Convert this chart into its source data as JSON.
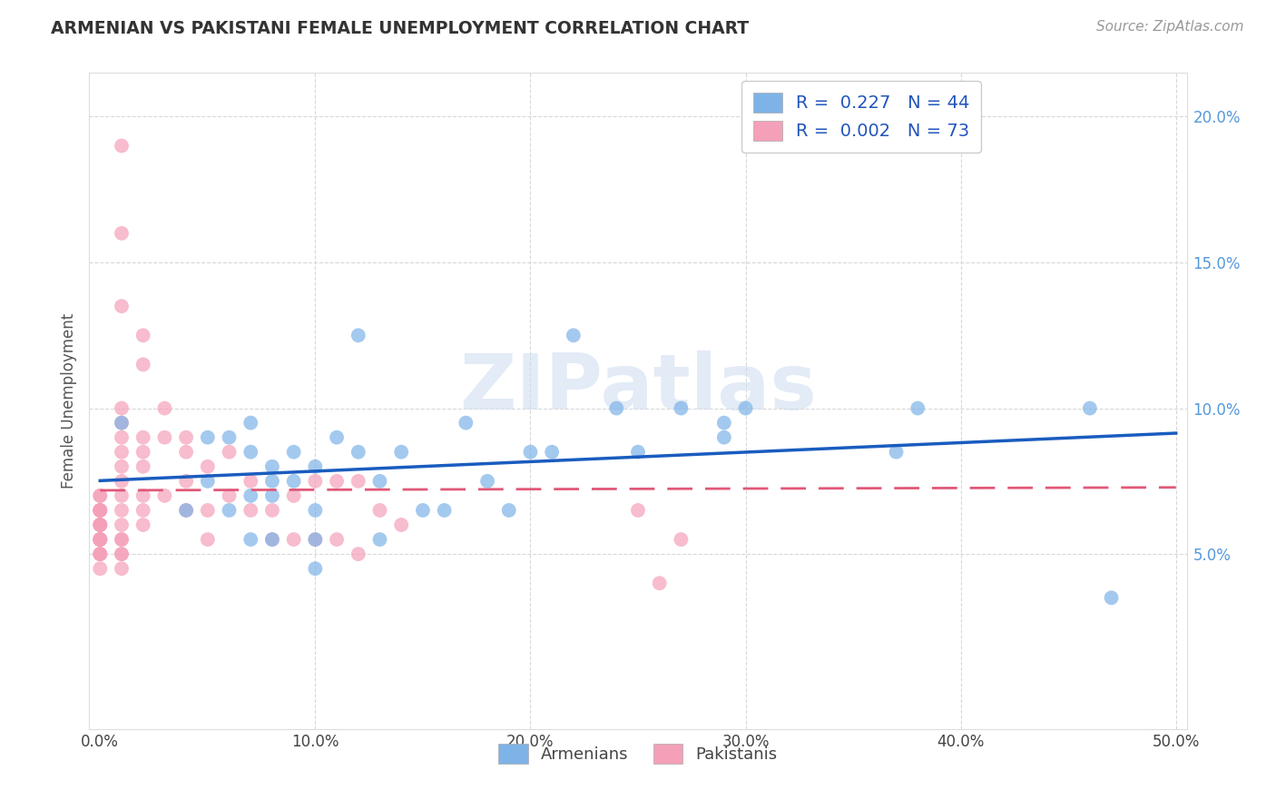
{
  "title": "ARMENIAN VS PAKISTANI FEMALE UNEMPLOYMENT CORRELATION CHART",
  "source": "Source: ZipAtlas.com",
  "xlabel": "",
  "ylabel": "Female Unemployment",
  "xlim": [
    -0.005,
    0.505
  ],
  "ylim": [
    -0.01,
    0.215
  ],
  "xticks": [
    0.0,
    0.1,
    0.2,
    0.3,
    0.4,
    0.5
  ],
  "xtick_labels": [
    "0.0%",
    "10.0%",
    "20.0%",
    "30.0%",
    "40.0%",
    "50.0%"
  ],
  "yticks": [
    0.0,
    0.05,
    0.1,
    0.15,
    0.2
  ],
  "ytick_labels": [
    "",
    "5.0%",
    "10.0%",
    "15.0%",
    "20.0%"
  ],
  "armenian_color": "#7eb3e8",
  "pakistani_color": "#f4a0b8",
  "armenian_line_color": "#1a5cbf",
  "pakistani_line_color": "#e05878",
  "legend_armenian_R": "0.227",
  "legend_armenian_N": "44",
  "legend_pakistani_R": "0.002",
  "legend_pakistani_N": "73",
  "background_color": "#ffffff",
  "grid_color": "#d8d8d8",
  "watermark": "ZIPatlas",
  "armenians_x": [
    0.01,
    0.04,
    0.05,
    0.05,
    0.06,
    0.06,
    0.07,
    0.07,
    0.07,
    0.07,
    0.08,
    0.08,
    0.08,
    0.08,
    0.09,
    0.09,
    0.1,
    0.1,
    0.1,
    0.1,
    0.11,
    0.12,
    0.12,
    0.13,
    0.13,
    0.14,
    0.15,
    0.16,
    0.17,
    0.18,
    0.19,
    0.2,
    0.21,
    0.22,
    0.24,
    0.25,
    0.27,
    0.29,
    0.29,
    0.3,
    0.37,
    0.38,
    0.46,
    0.47
  ],
  "armenians_y": [
    0.095,
    0.065,
    0.09,
    0.075,
    0.09,
    0.065,
    0.095,
    0.085,
    0.07,
    0.055,
    0.08,
    0.075,
    0.07,
    0.055,
    0.085,
    0.075,
    0.08,
    0.065,
    0.055,
    0.045,
    0.09,
    0.125,
    0.085,
    0.075,
    0.055,
    0.085,
    0.065,
    0.065,
    0.095,
    0.075,
    0.065,
    0.085,
    0.085,
    0.125,
    0.1,
    0.085,
    0.1,
    0.095,
    0.09,
    0.1,
    0.085,
    0.1,
    0.1,
    0.035
  ],
  "pakistanis_x": [
    0.0,
    0.0,
    0.0,
    0.0,
    0.0,
    0.0,
    0.0,
    0.0,
    0.0,
    0.0,
    0.0,
    0.0,
    0.0,
    0.0,
    0.0,
    0.0,
    0.0,
    0.0,
    0.0,
    0.01,
    0.01,
    0.01,
    0.01,
    0.01,
    0.01,
    0.01,
    0.01,
    0.01,
    0.01,
    0.01,
    0.01,
    0.01,
    0.01,
    0.01,
    0.01,
    0.01,
    0.02,
    0.02,
    0.02,
    0.02,
    0.02,
    0.02,
    0.02,
    0.02,
    0.03,
    0.03,
    0.03,
    0.04,
    0.04,
    0.04,
    0.04,
    0.05,
    0.05,
    0.05,
    0.06,
    0.06,
    0.07,
    0.07,
    0.08,
    0.08,
    0.09,
    0.09,
    0.1,
    0.1,
    0.11,
    0.11,
    0.12,
    0.12,
    0.13,
    0.14,
    0.25,
    0.26,
    0.27
  ],
  "pakistanis_y": [
    0.07,
    0.07,
    0.065,
    0.065,
    0.065,
    0.065,
    0.06,
    0.06,
    0.06,
    0.06,
    0.055,
    0.055,
    0.055,
    0.055,
    0.055,
    0.05,
    0.05,
    0.05,
    0.045,
    0.19,
    0.16,
    0.135,
    0.1,
    0.095,
    0.09,
    0.085,
    0.08,
    0.075,
    0.07,
    0.065,
    0.06,
    0.055,
    0.055,
    0.05,
    0.05,
    0.045,
    0.125,
    0.115,
    0.09,
    0.085,
    0.08,
    0.07,
    0.065,
    0.06,
    0.1,
    0.09,
    0.07,
    0.09,
    0.085,
    0.075,
    0.065,
    0.08,
    0.065,
    0.055,
    0.085,
    0.07,
    0.075,
    0.065,
    0.065,
    0.055,
    0.07,
    0.055,
    0.075,
    0.055,
    0.075,
    0.055,
    0.075,
    0.05,
    0.065,
    0.06,
    0.065,
    0.04,
    0.055
  ]
}
